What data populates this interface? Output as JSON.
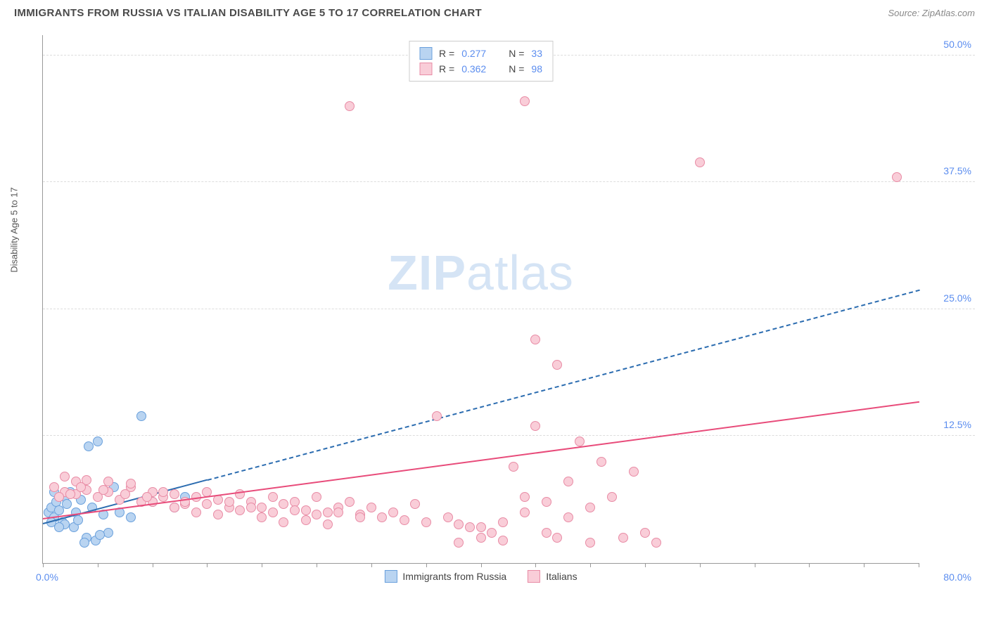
{
  "header": {
    "title": "IMMIGRANTS FROM RUSSIA VS ITALIAN DISABILITY AGE 5 TO 17 CORRELATION CHART",
    "source_prefix": "Source: ",
    "source": "ZipAtlas.com"
  },
  "watermark": {
    "part1": "ZIP",
    "part2": "atlas"
  },
  "chart": {
    "type": "scatter",
    "y_axis_label": "Disability Age 5 to 17",
    "xlim": [
      0,
      80
    ],
    "ylim": [
      0,
      52
    ],
    "x_min_label": "0.0%",
    "x_max_label": "80.0%",
    "y_ticks": [
      {
        "v": 12.5,
        "label": "12.5%"
      },
      {
        "v": 25.0,
        "label": "25.0%"
      },
      {
        "v": 37.5,
        "label": "37.5%"
      },
      {
        "v": 50.0,
        "label": "50.0%"
      }
    ],
    "x_tick_step": 5,
    "background_color": "#ffffff",
    "grid_color": "#dddddd",
    "series": [
      {
        "id": "russia",
        "label": "Immigrants from Russia",
        "point_fill": "#b9d4f1",
        "point_stroke": "#6aa0dc",
        "point_radius": 7,
        "trend_color": "#2b6cb0",
        "trend_solid_end_x": 15,
        "trend_dashed": true,
        "trend": {
          "x1": 0,
          "y1": 4.0,
          "x2": 80,
          "y2": 27.0
        },
        "R": "0.277",
        "N": "33",
        "points": [
          [
            0.5,
            5.0
          ],
          [
            0.8,
            5.5
          ],
          [
            1.0,
            4.5
          ],
          [
            1.2,
            6.0
          ],
          [
            1.5,
            5.2
          ],
          [
            1.8,
            4.0
          ],
          [
            2.0,
            6.5
          ],
          [
            2.2,
            5.8
          ],
          [
            2.5,
            7.0
          ],
          [
            2.8,
            3.5
          ],
          [
            3.0,
            5.0
          ],
          [
            3.2,
            4.2
          ],
          [
            3.5,
            6.2
          ],
          [
            4.0,
            2.5
          ],
          [
            4.2,
            11.5
          ],
          [
            4.5,
            5.5
          ],
          [
            5.0,
            12.0
          ],
          [
            5.5,
            4.8
          ],
          [
            6.0,
            3.0
          ],
          [
            6.5,
            7.5
          ],
          [
            7.0,
            5.0
          ],
          [
            8.0,
            4.5
          ],
          [
            9.0,
            14.5
          ],
          [
            10.0,
            6.0
          ],
          [
            12.0,
            5.5
          ],
          [
            13.0,
            6.5
          ],
          [
            3.8,
            2.0
          ],
          [
            4.8,
            2.2
          ],
          [
            5.2,
            2.8
          ],
          [
            2.0,
            3.8
          ],
          [
            1.0,
            7.0
          ],
          [
            1.5,
            3.5
          ],
          [
            0.8,
            4.0
          ]
        ]
      },
      {
        "id": "italians",
        "label": "Italians",
        "point_fill": "#f9cdd8",
        "point_stroke": "#e88ba5",
        "point_radius": 7,
        "trend_color": "#e84b7a",
        "trend_solid_end_x": 80,
        "trend_dashed": false,
        "trend": {
          "x1": 0,
          "y1": 4.5,
          "x2": 80,
          "y2": 16.0
        },
        "R": "0.362",
        "N": "98",
        "points": [
          [
            1,
            7.5
          ],
          [
            2,
            7.0
          ],
          [
            3,
            6.8
          ],
          [
            4,
            7.2
          ],
          [
            5,
            6.5
          ],
          [
            6,
            7.0
          ],
          [
            7,
            6.2
          ],
          [
            8,
            7.5
          ],
          [
            9,
            6.0
          ],
          [
            10,
            7.0
          ],
          [
            11,
            6.5
          ],
          [
            12,
            6.8
          ],
          [
            13,
            5.8
          ],
          [
            14,
            6.5
          ],
          [
            15,
            7.0
          ],
          [
            16,
            6.2
          ],
          [
            17,
            5.5
          ],
          [
            18,
            6.8
          ],
          [
            19,
            6.0
          ],
          [
            20,
            5.5
          ],
          [
            21,
            6.5
          ],
          [
            22,
            5.8
          ],
          [
            23,
            6.0
          ],
          [
            24,
            5.2
          ],
          [
            25,
            6.5
          ],
          [
            26,
            5.0
          ],
          [
            27,
            5.5
          ],
          [
            28,
            6.0
          ],
          [
            29,
            4.8
          ],
          [
            30,
            5.5
          ],
          [
            31,
            4.5
          ],
          [
            32,
            5.0
          ],
          [
            33,
            4.2
          ],
          [
            34,
            5.8
          ],
          [
            35,
            4.0
          ],
          [
            36,
            14.5
          ],
          [
            37,
            4.5
          ],
          [
            38,
            3.8
          ],
          [
            38,
            2.0
          ],
          [
            39,
            3.5
          ],
          [
            40,
            2.5
          ],
          [
            41,
            3.0
          ],
          [
            42,
            2.2
          ],
          [
            43,
            9.5
          ],
          [
            44,
            6.5
          ],
          [
            45,
            13.5
          ],
          [
            45,
            22.0
          ],
          [
            46,
            3.0
          ],
          [
            47,
            2.5
          ],
          [
            47,
            19.5
          ],
          [
            48,
            8.0
          ],
          [
            49,
            12.0
          ],
          [
            50,
            2.0
          ],
          [
            51,
            10.0
          ],
          [
            52,
            6.5
          ],
          [
            53,
            2.5
          ],
          [
            54,
            9.0
          ],
          [
            55,
            3.0
          ],
          [
            56,
            2.0
          ],
          [
            40,
            3.5
          ],
          [
            42,
            4.0
          ],
          [
            44,
            5.0
          ],
          [
            46,
            6.0
          ],
          [
            48,
            4.5
          ],
          [
            50,
            5.5
          ],
          [
            28,
            45.0
          ],
          [
            44,
            45.5
          ],
          [
            60,
            39.5
          ],
          [
            78,
            38.0
          ],
          [
            3,
            8.0
          ],
          [
            2,
            8.5
          ],
          [
            4,
            8.2
          ],
          [
            6,
            8.0
          ],
          [
            8,
            7.8
          ],
          [
            10,
            6.0
          ],
          [
            12,
            5.5
          ],
          [
            14,
            5.0
          ],
          [
            16,
            4.8
          ],
          [
            18,
            5.2
          ],
          [
            20,
            4.5
          ],
          [
            22,
            4.0
          ],
          [
            24,
            4.2
          ],
          [
            26,
            3.8
          ],
          [
            1.5,
            6.5
          ],
          [
            2.5,
            6.8
          ],
          [
            3.5,
            7.5
          ],
          [
            5.5,
            7.2
          ],
          [
            7.5,
            6.8
          ],
          [
            9.5,
            6.5
          ],
          [
            11,
            7.0
          ],
          [
            13,
            6.0
          ],
          [
            15,
            5.8
          ],
          [
            17,
            6.0
          ],
          [
            19,
            5.5
          ],
          [
            21,
            5.0
          ],
          [
            23,
            5.2
          ],
          [
            25,
            4.8
          ],
          [
            27,
            5.0
          ],
          [
            29,
            4.5
          ]
        ]
      }
    ],
    "legend_top": {
      "r_prefix": "R = ",
      "n_prefix": "N = "
    }
  }
}
